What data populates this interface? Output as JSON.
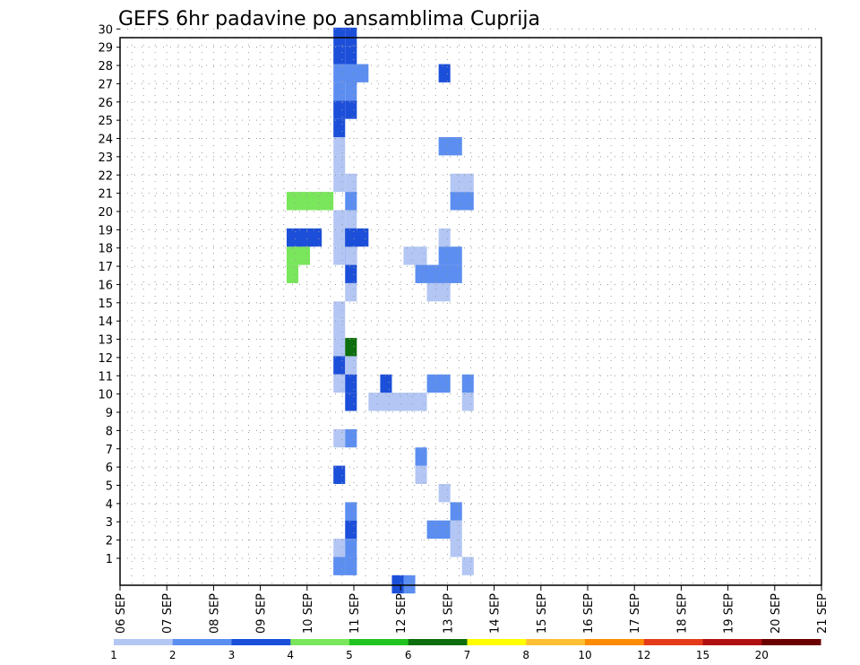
{
  "chart_data": {
    "type": "heatmap",
    "title": "GEFS 6hr padavine po ansamblima Cuprija",
    "x_ticks": [
      "06 SEP",
      "07 SEP",
      "08 SEP",
      "09 SEP",
      "10 SEP",
      "11 SEP",
      "12 SEP",
      "13 SEP",
      "14 SEP",
      "15 SEP",
      "16 SEP",
      "17 SEP",
      "18 SEP",
      "19 SEP",
      "20 SEP",
      "21 SEP"
    ],
    "y_ticks": [
      "1",
      "2",
      "3",
      "4",
      "5",
      "6",
      "7",
      "8",
      "9",
      "10",
      "11",
      "12",
      "13",
      "14",
      "15",
      "16",
      "17",
      "18",
      "19",
      "20",
      "21",
      "22",
      "23",
      "24",
      "25",
      "26",
      "27",
      "28",
      "29",
      "30"
    ],
    "y_range": [
      0,
      30
    ],
    "x_steps_per_day": 4,
    "grid": true,
    "legend": {
      "placement": "bottom",
      "labels": [
        "1",
        "2",
        "3",
        "4",
        "5",
        "6",
        "7",
        "8",
        "10",
        "12",
        "15",
        "20"
      ],
      "colors": [
        "#b3c6f4",
        "#5b8ef0",
        "#1c4fd9",
        "#79e65b",
        "#20c320",
        "#0d6e0d",
        "#ffff00",
        "#ffbf33",
        "#ff8c00",
        "#e63b1a",
        "#b01010",
        "#6b0000"
      ]
    },
    "cells": [
      [
        3,
        0,
        17,
        1
      ],
      [
        0,
        7,
        10,
        5
      ],
      [
        1,
        10,
        0,
        1
      ],
      [
        0,
        8,
        10,
        1
      ],
      [
        2,
        8,
        11,
        1
      ],
      [
        2,
        9,
        0,
        1
      ],
      [
        3,
        0,
        18,
        2
      ],
      [
        0,
        11,
        6,
        1
      ],
      [
        1,
        11,
        7,
        1
      ],
      [
        1,
        12,
        3,
        2
      ],
      [
        0,
        13,
        5,
        1
      ],
      [
        0,
        13,
        19,
        1
      ],
      [
        0,
        14,
        2,
        1
      ],
      [
        0,
        14,
        3,
        1
      ],
      [
        2,
        0,
        19,
        3
      ],
      [
        0,
        10,
        18,
        2
      ],
      [
        1,
        11,
        17,
        4
      ],
      [
        1,
        12,
        11,
        2
      ],
      [
        0,
        12,
        16,
        2
      ],
      [
        1,
        13,
        18,
        2
      ],
      [
        3,
        0,
        21,
        4
      ],
      [
        1,
        13,
        24,
        2
      ],
      [
        2,
        13,
        28,
        1
      ],
      [
        1,
        14,
        4,
        1
      ],
      [
        1,
        14,
        21,
        2
      ],
      [
        0,
        14,
        22,
        2
      ],
      [
        0,
        15,
        1,
        1
      ],
      [
        0,
        15,
        10,
        1
      ],
      [
        1,
        15,
        11,
        1
      ],
      [
        2,
        4,
        29,
        1
      ],
      [
        2,
        4,
        30,
        1
      ],
      [
        1,
        4,
        28,
        1
      ],
      [
        1,
        4,
        27,
        1
      ],
      [
        2,
        4,
        26,
        1
      ],
      [
        0,
        4,
        24,
        1
      ],
      [
        0,
        4,
        23,
        1
      ],
      [
        0,
        4,
        22,
        1
      ],
      [
        0,
        4,
        20,
        1
      ],
      [
        0,
        4,
        19,
        1
      ],
      [
        0,
        4,
        18,
        1
      ],
      [
        0,
        4,
        15,
        1
      ],
      [
        0,
        4,
        14,
        1
      ],
      [
        0,
        4,
        13,
        1
      ],
      [
        0,
        4,
        8,
        1
      ],
      [
        0,
        4,
        1,
        2
      ],
      [
        0,
        4,
        2,
        1
      ],
      [
        2,
        4,
        25,
        1
      ],
      [
        2,
        4,
        12,
        1
      ],
      [
        0,
        4,
        11,
        1
      ],
      [
        2,
        4,
        6,
        1
      ],
      [
        1,
        4,
        1,
        1
      ],
      [
        2,
        5,
        30,
        1
      ],
      [
        2,
        5,
        29,
        1
      ],
      [
        2,
        5,
        28,
        1
      ],
      [
        1,
        5,
        27,
        1
      ],
      [
        2,
        5,
        26,
        1
      ],
      [
        0,
        5,
        22,
        1
      ],
      [
        1,
        5,
        21,
        1
      ],
      [
        0,
        5,
        20,
        1
      ],
      [
        2,
        5,
        19,
        1
      ],
      [
        2,
        5,
        18,
        1
      ],
      [
        0,
        5,
        18,
        1
      ],
      [
        2,
        5,
        17,
        1
      ],
      [
        0,
        5,
        16,
        1
      ],
      [
        0,
        5,
        12,
        1
      ],
      [
        5,
        5,
        13,
        1
      ],
      [
        2,
        5,
        11,
        1
      ],
      [
        2,
        5,
        10,
        1
      ],
      [
        1,
        5,
        8,
        1
      ],
      [
        1,
        5,
        28,
        2
      ],
      [
        2,
        5,
        19,
        2
      ],
      [
        1,
        5,
        4,
        1
      ],
      [
        2,
        5,
        3,
        1
      ],
      [
        1,
        5,
        2,
        1
      ],
      [
        1,
        5,
        1,
        1
      ]
    ]
  }
}
